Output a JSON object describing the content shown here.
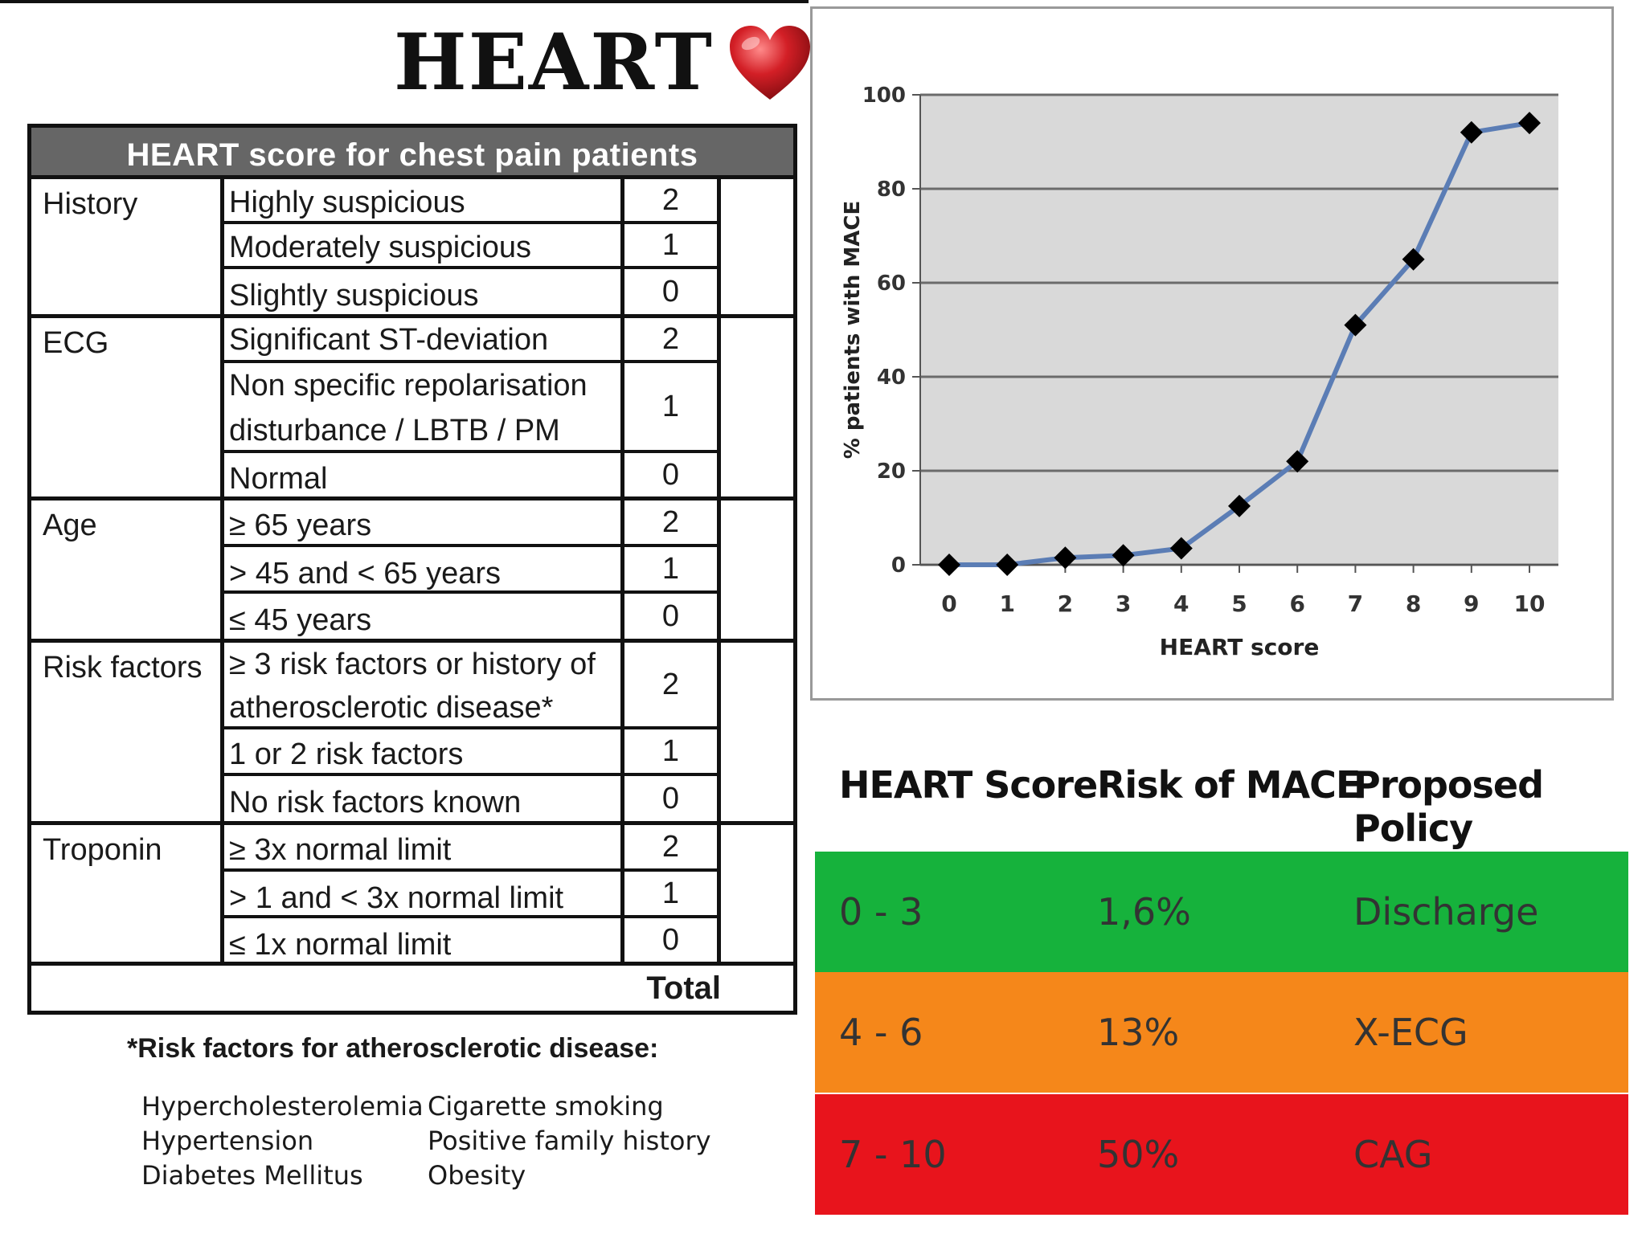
{
  "title": "HEART",
  "score_table": {
    "header": "HEART score for chest pain patients",
    "sections": [
      {
        "label": "History",
        "rows": [
          {
            "text": "Highly suspicious",
            "points": "2"
          },
          {
            "text": "Moderately suspicious",
            "points": "1"
          },
          {
            "text": "Slightly suspicious",
            "points": "0"
          }
        ]
      },
      {
        "label": "ECG",
        "rows": [
          {
            "text": "Significant ST-deviation",
            "points": "2"
          },
          {
            "text": "Non specific repolarisation disturbance / LBTB / PM",
            "points": "1"
          },
          {
            "text": "Normal",
            "points": "0"
          }
        ]
      },
      {
        "label": "Age",
        "rows": [
          {
            "text": "≥ 65 years",
            "points": "2"
          },
          {
            "text": "> 45 and < 65 years",
            "points": "1"
          },
          {
            "text": "≤ 45 years",
            "points": "0"
          }
        ]
      },
      {
        "label": "Risk factors",
        "rows": [
          {
            "text": "≥ 3 risk factors or history of atherosclerotic disease*",
            "points": "2"
          },
          {
            "text": "1 or 2 risk factors",
            "points": "1"
          },
          {
            "text": "No risk factors known",
            "points": "0"
          }
        ]
      },
      {
        "label": "Troponin",
        "rows": [
          {
            "text": "≥ 3x normal limit",
            "points": "2"
          },
          {
            "text": "> 1 and < 3x normal limit",
            "points": "1"
          },
          {
            "text": "≤ 1x normal limit",
            "points": "0"
          }
        ]
      }
    ],
    "total_label": "Total"
  },
  "footnote": {
    "title": "*Risk factors for atherosclerotic disease:",
    "col1": [
      "Hypercholesterolemia",
      "Hypertension",
      "Diabetes Mellitus"
    ],
    "col2": [
      "Cigarette smoking",
      "Positive family history",
      "Obesity"
    ]
  },
  "chart_data": {
    "type": "line",
    "x": [
      0,
      1,
      2,
      3,
      4,
      5,
      6,
      7,
      8,
      9,
      10
    ],
    "values": [
      0,
      0,
      1.5,
      2,
      3.5,
      12.5,
      22,
      51,
      65,
      92,
      94
    ],
    "xlabel": "HEART score",
    "ylabel": "% patients with MACE",
    "ylim": [
      0,
      100
    ],
    "yticks": [
      0,
      20,
      40,
      60,
      80,
      100
    ],
    "grid": true,
    "line_color": "#5b7db5",
    "marker_color": "#000000",
    "plot_bg": "#d9d9d9"
  },
  "risk_table": {
    "headers": [
      "HEART Score",
      "Risk of MACE",
      "Proposed Policy"
    ],
    "rows": [
      {
        "score": "0 - 3",
        "risk": "1,6%",
        "policy": "Discharge",
        "color": "#16b23c"
      },
      {
        "score": "4 - 6",
        "risk": "13%",
        "policy": "X-ECG",
        "color": "#f5871a"
      },
      {
        "score": "7 - 10",
        "risk": "50%",
        "policy": "CAG",
        "color": "#e8141c"
      }
    ]
  }
}
